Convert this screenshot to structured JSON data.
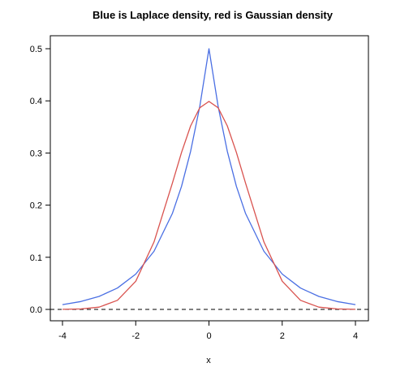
{
  "chart_data": {
    "type": "line",
    "title": "Blue is Laplace density, red is Gaussian density",
    "xlabel": "x",
    "ylabel": "",
    "xlim": [
      -4,
      4
    ],
    "ylim": [
      0,
      0.5
    ],
    "x_ticks": [
      -4,
      -2,
      0,
      2,
      4
    ],
    "x_tick_labels": [
      "-4",
      "-2",
      "0",
      "2",
      "4"
    ],
    "y_ticks": [
      0.0,
      0.1,
      0.2,
      0.3,
      0.4,
      0.5
    ],
    "y_tick_labels": [
      "0.0",
      "0.1",
      "0.2",
      "0.3",
      "0.4",
      "0.5"
    ],
    "grid": false,
    "series": [
      {
        "color": "#4a6fe3",
        "x": [
          -4,
          -3.5,
          -3,
          -2.5,
          -2,
          -1.5,
          -1,
          -0.75,
          -0.5,
          -0.25,
          0,
          0.25,
          0.5,
          0.75,
          1,
          1.5,
          2,
          2.5,
          3,
          3.5,
          4
        ],
        "y": [
          0.0092,
          0.0151,
          0.0249,
          0.041,
          0.0677,
          0.1116,
          0.1839,
          0.2362,
          0.3033,
          0.3894,
          0.5,
          0.3894,
          0.3033,
          0.2362,
          0.1839,
          0.1116,
          0.0677,
          0.041,
          0.0249,
          0.0151,
          0.0092
        ]
      },
      {
        "color": "#d9534f",
        "x": [
          -4,
          -3.5,
          -3,
          -2.5,
          -2,
          -1.5,
          -1,
          -0.75,
          -0.5,
          -0.25,
          0,
          0.25,
          0.5,
          0.75,
          1,
          1.5,
          2,
          2.5,
          3,
          3.5,
          4
        ],
        "y": [
          0.0001,
          0.0009,
          0.0044,
          0.0175,
          0.054,
          0.1295,
          0.242,
          0.3011,
          0.3521,
          0.3867,
          0.3989,
          0.3867,
          0.3521,
          0.3011,
          0.242,
          0.1295,
          0.054,
          0.0175,
          0.0044,
          0.0009,
          0.0001
        ]
      }
    ],
    "reference_line": {
      "y": 0,
      "style": "dashed",
      "color": "#000000"
    }
  }
}
